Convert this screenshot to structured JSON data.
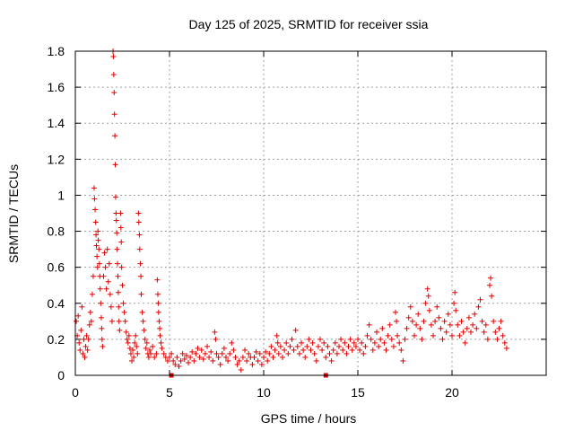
{
  "chart_data": {
    "type": "scatter",
    "title": "Day 125 of 2025, SRMTID for receiver ssia",
    "xlabel": "GPS time / hours",
    "ylabel": "SRMTID / TECUs",
    "xlim": [
      0,
      25
    ],
    "ylim": [
      0,
      1.8
    ],
    "xticks": [
      0,
      5,
      10,
      15,
      20
    ],
    "xtick_labels": [
      "0",
      "5",
      "10",
      "15",
      "20"
    ],
    "yticks": [
      0,
      0.2,
      0.4,
      0.6,
      0.8,
      1.0,
      1.2,
      1.4,
      1.6,
      1.8
    ],
    "ytick_labels": [
      "0",
      "0.2",
      "0.4",
      "0.6",
      "0.8",
      "1",
      "1.2",
      "1.4",
      "1.6",
      "1.8"
    ],
    "grid": true,
    "marker": "+",
    "color": "#e00000",
    "series": [
      {
        "name": "SRMTID",
        "points": [
          [
            0.05,
            0.3
          ],
          [
            0.1,
            0.22
          ],
          [
            0.15,
            0.33
          ],
          [
            0.2,
            0.18
          ],
          [
            0.25,
            0.14
          ],
          [
            0.3,
            0.25
          ],
          [
            0.35,
            0.38
          ],
          [
            0.4,
            0.12
          ],
          [
            0.45,
            0.2
          ],
          [
            0.5,
            0.1
          ],
          [
            0.55,
            0.16
          ],
          [
            0.6,
            0.22
          ],
          [
            0.65,
            0.14
          ],
          [
            0.7,
            0.2
          ],
          [
            0.75,
            0.28
          ],
          [
            0.8,
            0.35
          ],
          [
            0.85,
            0.3
          ],
          [
            0.9,
            0.45
          ],
          [
            0.95,
            0.55
          ],
          [
            1.0,
            1.04
          ],
          [
            1.02,
            0.98
          ],
          [
            1.05,
            0.92
          ],
          [
            1.08,
            0.85
          ],
          [
            1.1,
            0.78
          ],
          [
            1.12,
            0.72
          ],
          [
            1.15,
            0.66
          ],
          [
            1.18,
            0.6
          ],
          [
            1.2,
            0.8
          ],
          [
            1.22,
            0.75
          ],
          [
            1.25,
            0.7
          ],
          [
            1.28,
            0.62
          ],
          [
            1.3,
            0.55
          ],
          [
            1.32,
            0.48
          ],
          [
            1.35,
            0.4
          ],
          [
            1.38,
            0.32
          ],
          [
            1.4,
            0.26
          ],
          [
            1.42,
            0.2
          ],
          [
            1.45,
            0.16
          ],
          [
            1.5,
            0.55
          ],
          [
            1.55,
            0.68
          ],
          [
            1.6,
            0.6
          ],
          [
            1.65,
            0.48
          ],
          [
            1.7,
            0.7
          ],
          [
            1.75,
            0.52
          ],
          [
            1.8,
            0.62
          ],
          [
            1.85,
            0.45
          ],
          [
            1.9,
            0.38
          ],
          [
            1.95,
            0.3
          ],
          [
            2.0,
            1.8
          ],
          [
            2.02,
            1.77
          ],
          [
            2.04,
            1.67
          ],
          [
            2.06,
            1.57
          ],
          [
            2.08,
            1.45
          ],
          [
            2.1,
            1.33
          ],
          [
            2.12,
            1.17
          ],
          [
            2.14,
            0.99
          ],
          [
            2.16,
            0.9
          ],
          [
            2.18,
            0.86
          ],
          [
            2.2,
            0.79
          ],
          [
            2.22,
            0.7
          ],
          [
            2.24,
            0.62
          ],
          [
            2.26,
            0.55
          ],
          [
            2.28,
            0.46
          ],
          [
            2.3,
            0.38
          ],
          [
            2.32,
            0.3
          ],
          [
            2.35,
            0.25
          ],
          [
            2.4,
            0.9
          ],
          [
            2.42,
            0.82
          ],
          [
            2.44,
            0.74
          ],
          [
            2.46,
            0.6
          ],
          [
            2.5,
            0.5
          ],
          [
            2.55,
            0.4
          ],
          [
            2.6,
            0.35
          ],
          [
            2.65,
            0.3
          ],
          [
            2.7,
            0.24
          ],
          [
            2.75,
            0.2
          ],
          [
            2.8,
            0.18
          ],
          [
            2.85,
            0.22
          ],
          [
            2.9,
            0.15
          ],
          [
            2.95,
            0.12
          ],
          [
            3.0,
            0.08
          ],
          [
            3.05,
            0.14
          ],
          [
            3.1,
            0.1
          ],
          [
            3.15,
            0.18
          ],
          [
            3.2,
            0.22
          ],
          [
            3.25,
            0.16
          ],
          [
            3.3,
            0.12
          ],
          [
            3.35,
            0.9
          ],
          [
            3.37,
            0.85
          ],
          [
            3.4,
            0.78
          ],
          [
            3.42,
            0.7
          ],
          [
            3.45,
            0.62
          ],
          [
            3.48,
            0.55
          ],
          [
            3.5,
            0.45
          ],
          [
            3.55,
            0.35
          ],
          [
            3.6,
            0.3
          ],
          [
            3.65,
            0.25
          ],
          [
            3.7,
            0.2
          ],
          [
            3.75,
            0.15
          ],
          [
            3.8,
            0.18
          ],
          [
            3.85,
            0.12
          ],
          [
            3.9,
            0.1
          ],
          [
            3.95,
            0.14
          ],
          [
            4.0,
            0.12
          ],
          [
            4.1,
            0.16
          ],
          [
            4.2,
            0.1
          ],
          [
            4.3,
            0.12
          ],
          [
            4.35,
            0.53
          ],
          [
            4.38,
            0.45
          ],
          [
            4.4,
            0.4
          ],
          [
            4.42,
            0.35
          ],
          [
            4.45,
            0.3
          ],
          [
            4.48,
            0.26
          ],
          [
            4.5,
            0.22
          ],
          [
            4.55,
            0.18
          ],
          [
            4.6,
            0.15
          ],
          [
            4.7,
            0.12
          ],
          [
            4.8,
            0.1
          ],
          [
            4.9,
            0.08
          ],
          [
            5.0,
            0.1
          ],
          [
            5.1,
            0.12
          ],
          [
            5.2,
            0.08
          ],
          [
            5.3,
            0.06
          ],
          [
            5.4,
            0.1
          ],
          [
            5.5,
            0.05
          ],
          [
            5.6,
            0.08
          ],
          [
            5.7,
            0.12
          ],
          [
            5.8,
            0.09
          ],
          [
            5.9,
            0.11
          ],
          [
            6.0,
            0.07
          ],
          [
            6.1,
            0.1
          ],
          [
            6.2,
            0.13
          ],
          [
            6.3,
            0.08
          ],
          [
            6.4,
            0.12
          ],
          [
            6.5,
            0.15
          ],
          [
            6.6,
            0.1
          ],
          [
            6.7,
            0.14
          ],
          [
            6.8,
            0.09
          ],
          [
            6.9,
            0.12
          ],
          [
            7.0,
            0.16
          ],
          [
            7.1,
            0.1
          ],
          [
            7.2,
            0.13
          ],
          [
            7.3,
            0.08
          ],
          [
            7.4,
            0.24
          ],
          [
            7.45,
            0.2
          ],
          [
            7.5,
            0.12
          ],
          [
            7.6,
            0.1
          ],
          [
            7.7,
            0.06
          ],
          [
            7.8,
            0.12
          ],
          [
            7.9,
            0.15
          ],
          [
            8.0,
            0.1
          ],
          [
            8.1,
            0.08
          ],
          [
            8.2,
            0.12
          ],
          [
            8.3,
            0.18
          ],
          [
            8.4,
            0.14
          ],
          [
            8.5,
            0.1
          ],
          [
            8.6,
            0.06
          ],
          [
            8.7,
            0.08
          ],
          [
            8.8,
            0.03
          ],
          [
            8.9,
            0.1
          ],
          [
            9.0,
            0.14
          ],
          [
            9.1,
            0.08
          ],
          [
            9.2,
            0.12
          ],
          [
            9.3,
            0.1
          ],
          [
            9.4,
            0.06
          ],
          [
            9.5,
            0.1
          ],
          [
            9.6,
            0.13
          ],
          [
            9.7,
            0.08
          ],
          [
            9.8,
            0.12
          ],
          [
            9.9,
            0.06
          ],
          [
            10.0,
            0.1
          ],
          [
            10.1,
            0.13
          ],
          [
            10.2,
            0.08
          ],
          [
            10.3,
            0.12
          ],
          [
            10.4,
            0.16
          ],
          [
            10.5,
            0.1
          ],
          [
            10.6,
            0.14
          ],
          [
            10.7,
            0.22
          ],
          [
            10.75,
            0.18
          ],
          [
            10.8,
            0.12
          ],
          [
            10.9,
            0.16
          ],
          [
            11.0,
            0.1
          ],
          [
            11.1,
            0.14
          ],
          [
            11.2,
            0.18
          ],
          [
            11.3,
            0.12
          ],
          [
            11.4,
            0.16
          ],
          [
            11.5,
            0.2
          ],
          [
            11.6,
            0.14
          ],
          [
            11.7,
            0.25
          ],
          [
            11.8,
            0.16
          ],
          [
            11.9,
            0.12
          ],
          [
            12.0,
            0.18
          ],
          [
            12.1,
            0.14
          ],
          [
            12.2,
            0.1
          ],
          [
            12.3,
            0.16
          ],
          [
            12.4,
            0.2
          ],
          [
            12.5,
            0.14
          ],
          [
            12.6,
            0.18
          ],
          [
            12.7,
            0.12
          ],
          [
            12.8,
            0.08
          ],
          [
            12.9,
            0.16
          ],
          [
            13.0,
            0.2
          ],
          [
            13.1,
            0.14
          ],
          [
            13.2,
            0.18
          ],
          [
            13.3,
            0.1
          ],
          [
            13.4,
            0.16
          ],
          [
            13.5,
            0.12
          ],
          [
            13.6,
            0.08
          ],
          [
            13.7,
            0.14
          ],
          [
            13.8,
            0.18
          ],
          [
            13.9,
            0.12
          ],
          [
            14.0,
            0.16
          ],
          [
            14.1,
            0.2
          ],
          [
            14.2,
            0.14
          ],
          [
            14.3,
            0.18
          ],
          [
            14.4,
            0.12
          ],
          [
            14.5,
            0.16
          ],
          [
            14.6,
            0.2
          ],
          [
            14.7,
            0.14
          ],
          [
            14.8,
            0.18
          ],
          [
            14.9,
            0.16
          ],
          [
            15.0,
            0.2
          ],
          [
            15.1,
            0.14
          ],
          [
            15.2,
            0.18
          ],
          [
            15.3,
            0.12
          ],
          [
            15.4,
            0.16
          ],
          [
            15.5,
            0.22
          ],
          [
            15.6,
            0.28
          ],
          [
            15.7,
            0.2
          ],
          [
            15.8,
            0.14
          ],
          [
            15.9,
            0.18
          ],
          [
            16.0,
            0.24
          ],
          [
            16.1,
            0.16
          ],
          [
            16.2,
            0.2
          ],
          [
            16.3,
            0.26
          ],
          [
            16.4,
            0.18
          ],
          [
            16.5,
            0.14
          ],
          [
            16.6,
            0.22
          ],
          [
            16.7,
            0.28
          ],
          [
            16.8,
            0.2
          ],
          [
            16.9,
            0.16
          ],
          [
            17.0,
            0.35
          ],
          [
            17.05,
            0.3
          ],
          [
            17.1,
            0.22
          ],
          [
            17.2,
            0.18
          ],
          [
            17.3,
            0.14
          ],
          [
            17.4,
            0.08
          ],
          [
            17.5,
            0.2
          ],
          [
            17.6,
            0.26
          ],
          [
            17.7,
            0.32
          ],
          [
            17.8,
            0.38
          ],
          [
            17.9,
            0.3
          ],
          [
            18.0,
            0.22
          ],
          [
            18.1,
            0.28
          ],
          [
            18.2,
            0.34
          ],
          [
            18.3,
            0.26
          ],
          [
            18.4,
            0.2
          ],
          [
            18.5,
            0.3
          ],
          [
            18.6,
            0.4
          ],
          [
            18.7,
            0.48
          ],
          [
            18.75,
            0.44
          ],
          [
            18.8,
            0.36
          ],
          [
            18.9,
            0.28
          ],
          [
            19.0,
            0.22
          ],
          [
            19.1,
            0.3
          ],
          [
            19.2,
            0.38
          ],
          [
            19.3,
            0.32
          ],
          [
            19.4,
            0.26
          ],
          [
            19.5,
            0.2
          ],
          [
            19.6,
            0.3
          ],
          [
            19.7,
            0.24
          ],
          [
            19.8,
            0.34
          ],
          [
            19.9,
            0.28
          ],
          [
            20.0,
            0.22
          ],
          [
            20.1,
            0.4
          ],
          [
            20.15,
            0.46
          ],
          [
            20.2,
            0.36
          ],
          [
            20.3,
            0.28
          ],
          [
            20.4,
            0.22
          ],
          [
            20.5,
            0.3
          ],
          [
            20.6,
            0.24
          ],
          [
            20.7,
            0.18
          ],
          [
            20.8,
            0.26
          ],
          [
            20.9,
            0.32
          ],
          [
            21.0,
            0.24
          ],
          [
            21.1,
            0.28
          ],
          [
            21.2,
            0.34
          ],
          [
            21.3,
            0.26
          ],
          [
            21.4,
            0.38
          ],
          [
            21.5,
            0.42
          ],
          [
            21.6,
            0.3
          ],
          [
            21.7,
            0.24
          ],
          [
            21.8,
            0.28
          ],
          [
            21.9,
            0.2
          ],
          [
            22.0,
            0.5
          ],
          [
            22.05,
            0.54
          ],
          [
            22.1,
            0.44
          ],
          [
            22.2,
            0.3
          ],
          [
            22.3,
            0.24
          ],
          [
            22.4,
            0.2
          ],
          [
            22.5,
            0.26
          ],
          [
            22.6,
            0.3
          ],
          [
            22.7,
            0.22
          ],
          [
            22.8,
            0.18
          ],
          [
            22.9,
            0.15
          ]
        ]
      }
    ],
    "gap_markers": [
      5.1,
      13.3
    ]
  }
}
